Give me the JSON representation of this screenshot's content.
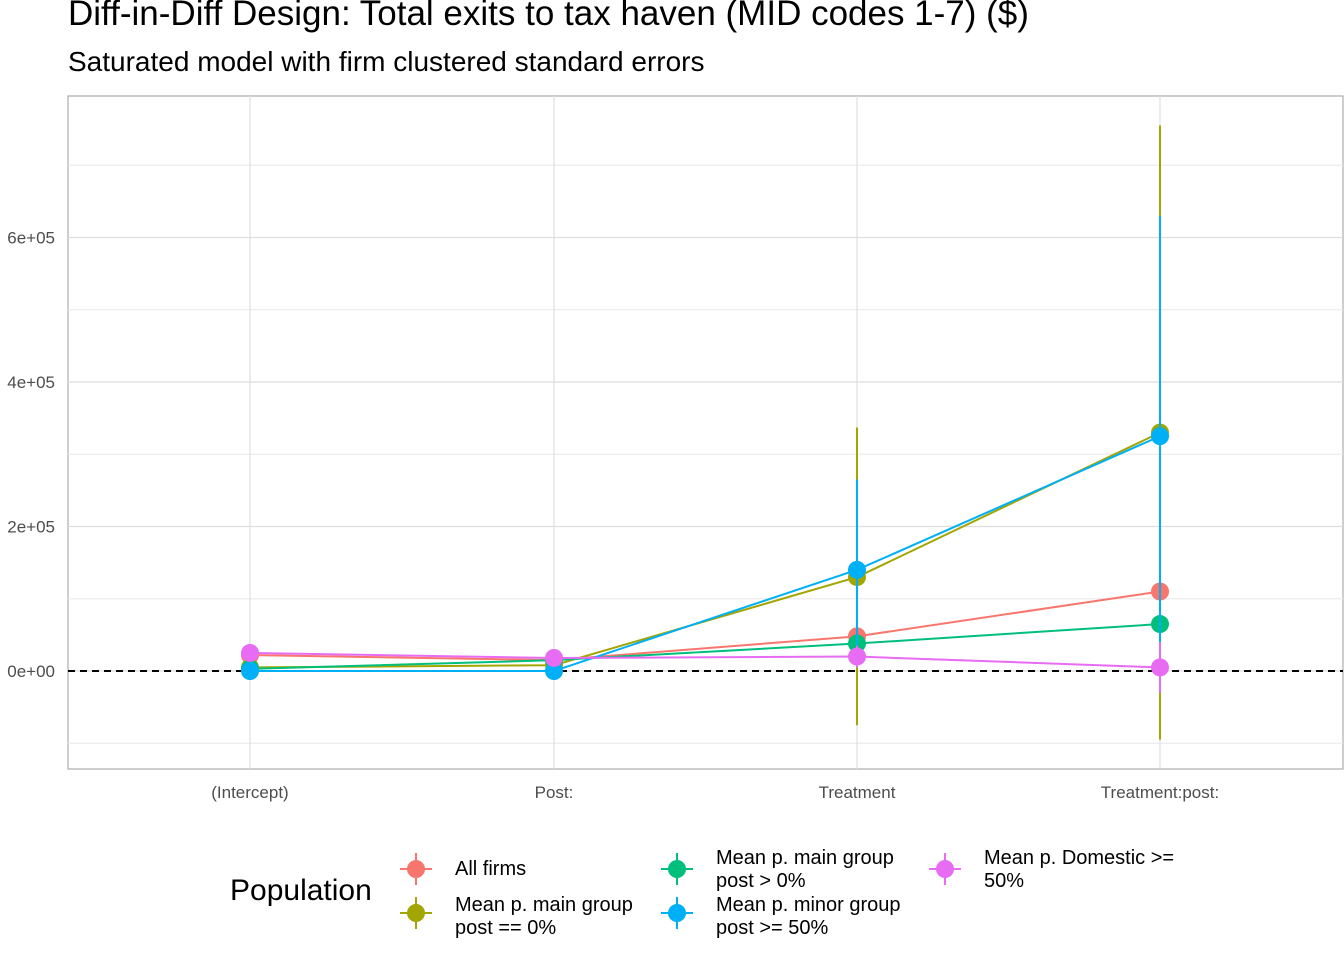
{
  "chart_data": {
    "type": "scatter",
    "title": "Diff-in-Diff Design: Total exits to tax haven (MID codes 1-7)  ($)",
    "subtitle": "Saturated model with firm clustered standard errors",
    "xlabel": "",
    "ylabel": "",
    "categories": [
      "(Intercept)",
      "Post:",
      "Treatment",
      "Treatment:post:"
    ],
    "y_ticks": [
      0,
      200000,
      400000,
      600000
    ],
    "y_tick_labels": [
      "0e+00",
      "2e+05",
      "4e+05",
      "6e+05"
    ],
    "ylim": [
      -135000,
      795000
    ],
    "grid": true,
    "reference_line": {
      "y": 0,
      "style": "dashed"
    },
    "legend": {
      "title": "Population",
      "position": "bottom",
      "entries": [
        "All firms",
        "Mean p. main group\npost == 0%",
        "Mean p. main group\npost > 0%",
        "Mean p. minor group\npost >= 50%",
        "Mean p. Domestic >=\n50%"
      ]
    },
    "series": [
      {
        "name": "All firms",
        "color": "#F8766D",
        "values": [
          22000,
          15000,
          48000,
          110000
        ],
        "lower": [
          20000,
          13000,
          44000,
          105000
        ],
        "upper": [
          24000,
          17000,
          52000,
          115000
        ]
      },
      {
        "name": "Mean p. main group post == 0%",
        "color": "#A3A500",
        "values": [
          5000,
          8000,
          130000,
          330000
        ],
        "lower": [
          3000,
          6000,
          -75000,
          -95000
        ],
        "upper": [
          7000,
          10000,
          337000,
          755000
        ]
      },
      {
        "name": "Mean p. main group post > 0%",
        "color": "#00BF7D",
        "values": [
          3000,
          15000,
          38000,
          65000
        ],
        "lower": [
          1000,
          13000,
          35000,
          60000
        ],
        "upper": [
          5000,
          17000,
          41000,
          70000
        ]
      },
      {
        "name": "Mean p. minor group post >= 50%",
        "color": "#00B0F6",
        "values": [
          0,
          0,
          140000,
          325000
        ],
        "lower": [
          -2000,
          -2000,
          15000,
          20000
        ],
        "upper": [
          2000,
          2000,
          265000,
          630000
        ]
      },
      {
        "name": "Mean p. Domestic >= 50%",
        "color": "#E76BF3",
        "values": [
          25000,
          18000,
          20000,
          5000
        ],
        "lower": [
          23000,
          16000,
          5000,
          -30000
        ],
        "upper": [
          27000,
          20000,
          35000,
          40000
        ]
      }
    ]
  }
}
